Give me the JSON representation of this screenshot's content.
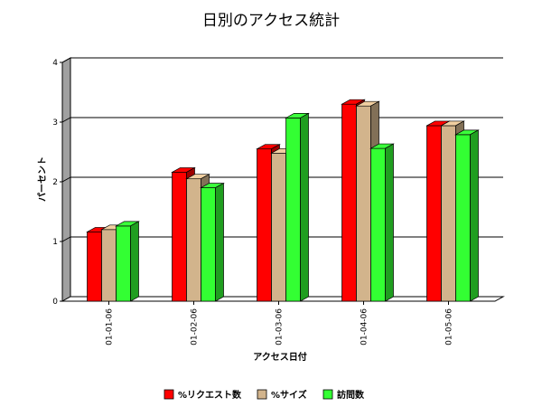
{
  "chart_data": {
    "type": "bar",
    "title": "日別のアクセス統計",
    "xlabel": "アクセス日付",
    "ylabel": "パーセント",
    "categories": [
      "01-01-06",
      "01-02-06",
      "01-03-06",
      "01-04-06",
      "01-05-06"
    ],
    "ylim": [
      0,
      4
    ],
    "yticks": [
      0,
      1,
      2,
      3,
      4
    ],
    "grid": true,
    "legend_position": "bottom-center",
    "series": [
      {
        "name": "%リクエスト数",
        "color": "#ff0000",
        "values": [
          1.16,
          2.16,
          2.55,
          3.3,
          2.94
        ]
      },
      {
        "name": "%サイズ",
        "color": "#d2b48c",
        "values": [
          1.2,
          2.05,
          2.48,
          3.27,
          2.94
        ]
      },
      {
        "name": "訪問数",
        "color": "#33ff33",
        "values": [
          1.26,
          1.9,
          3.07,
          2.56,
          2.79
        ]
      }
    ]
  }
}
